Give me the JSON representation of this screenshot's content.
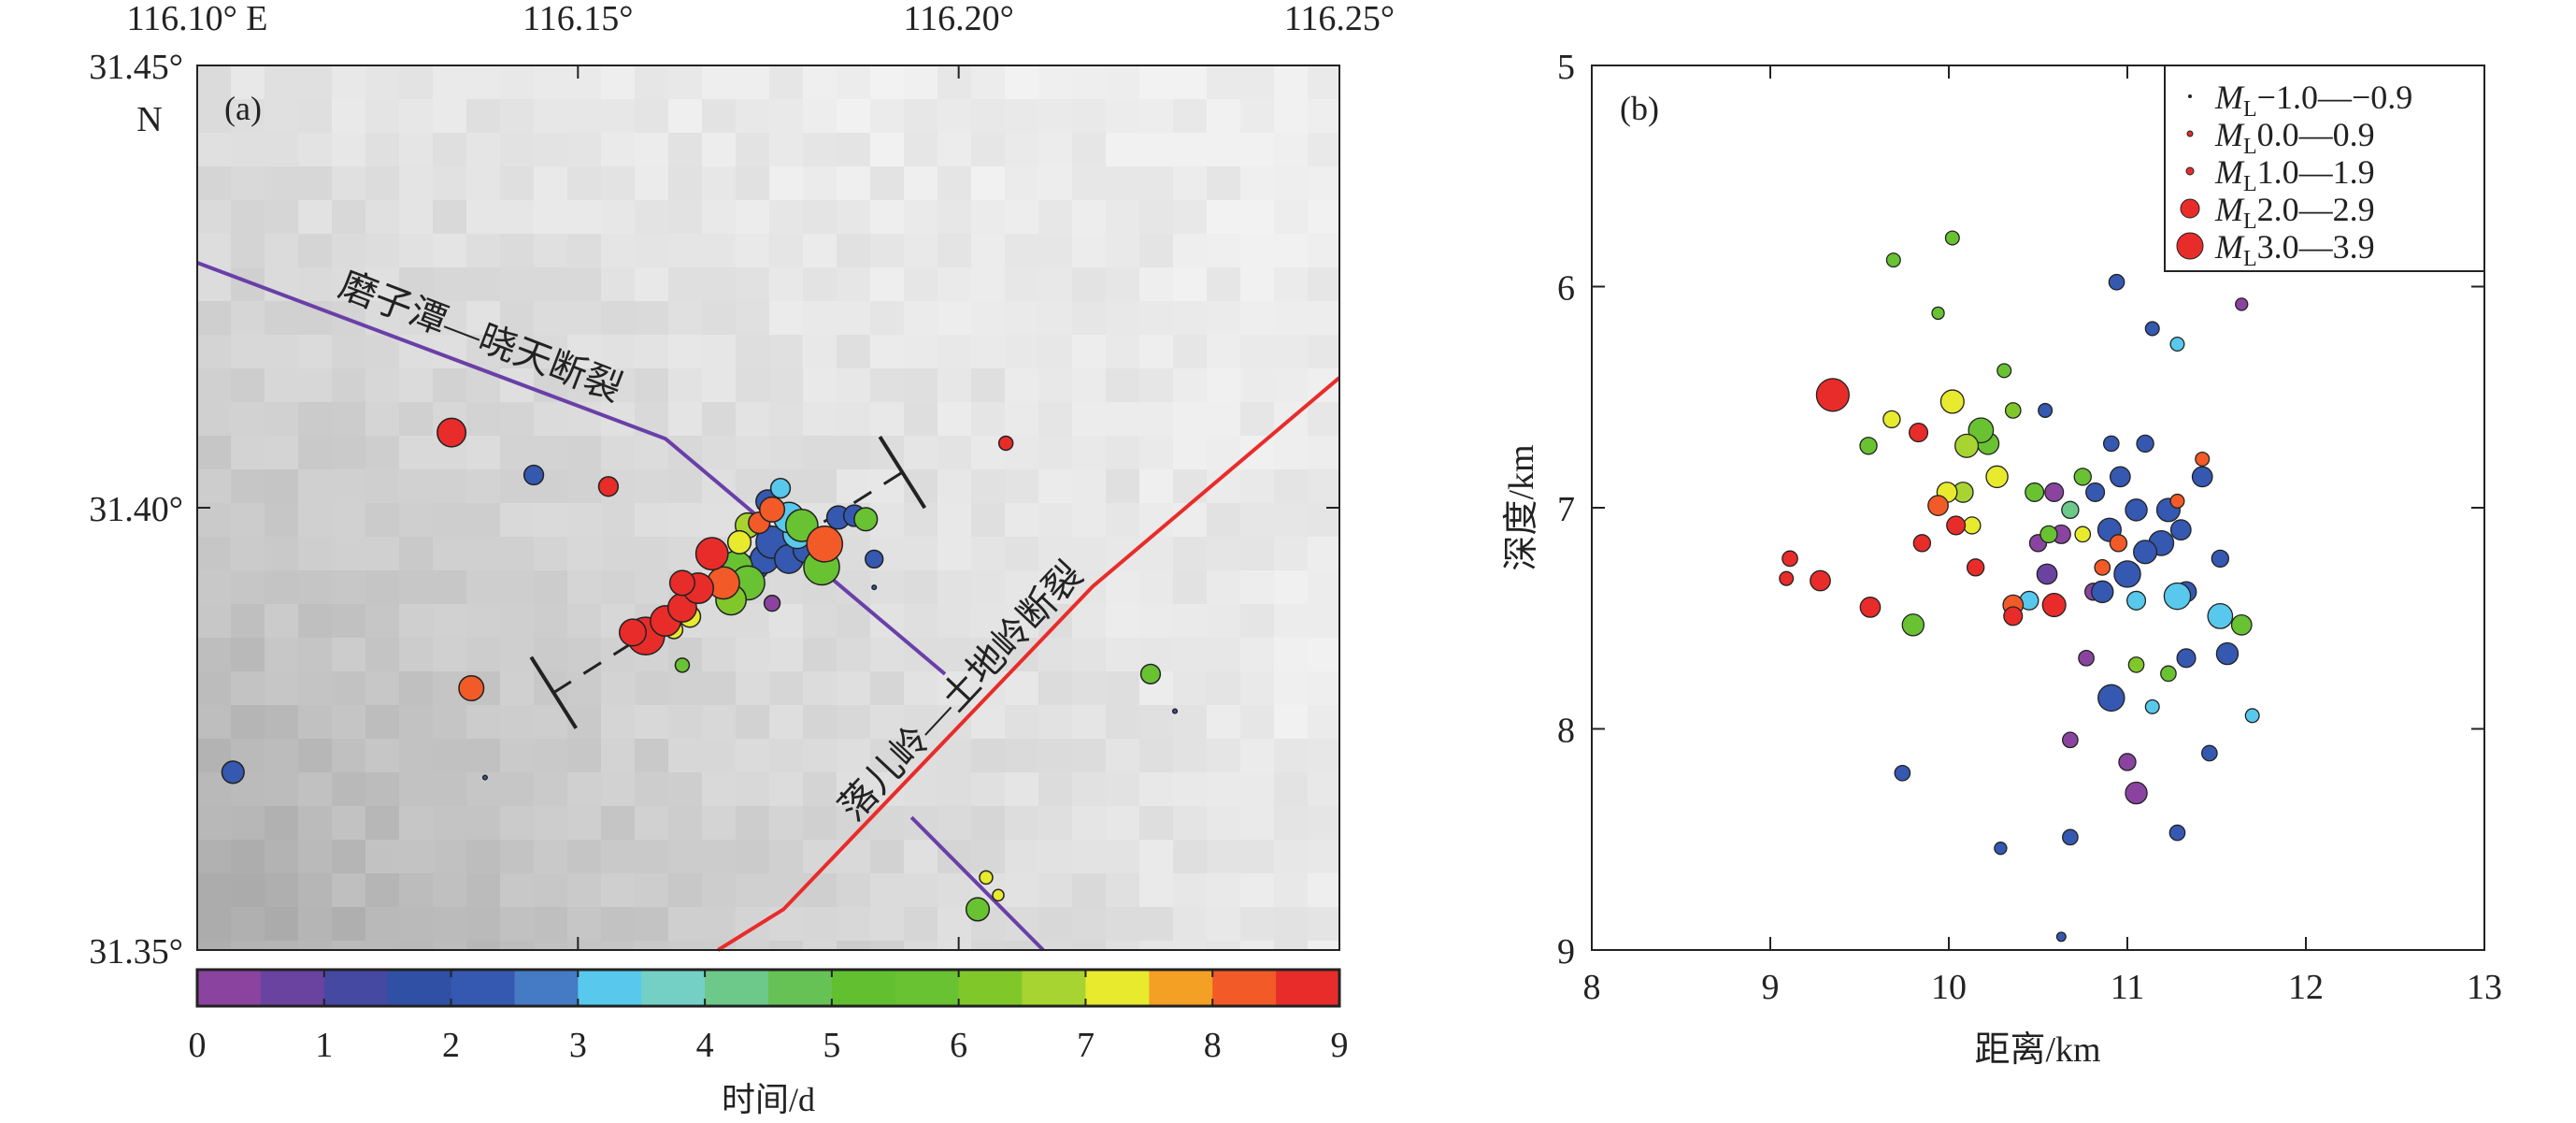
{
  "colors": [
    "#8a44a0",
    "#6a42a0",
    "#4549a2",
    "#2f50a4",
    "#3558b0",
    "#457ac4",
    "#58c8ec",
    "#74d0c4",
    "#6cc98a",
    "#66c254",
    "#62c030",
    "#68c232",
    "#80c82a",
    "#a8d432",
    "#e8ea2e",
    "#f4a024",
    "#f25a28",
    "#e82c2a"
  ],
  "chart_data": [
    {
      "type": "scatter",
      "panel_label": "(a)",
      "x_ticks": [
        "116.10° E",
        "116.15°",
        "116.20°",
        "116.25°"
      ],
      "x_tick_values": [
        116.1,
        116.15,
        116.2,
        116.25
      ],
      "y_ticks": [
        "31.45°",
        "31.40°",
        "31.35°"
      ],
      "y_tick_values": [
        31.45,
        31.4,
        31.35
      ],
      "y_unit_label": "N",
      "xlim": [
        116.1,
        116.25
      ],
      "ylim": [
        31.35,
        31.45
      ],
      "fields": [
        "lon",
        "lat",
        "time_d",
        "magnitude_ML"
      ],
      "events": [
        [
          116.1334,
          31.4085,
          8.8,
          2.2
        ],
        [
          116.1442,
          31.4037,
          2.2,
          1.2
        ],
        [
          116.154,
          31.4024,
          8.8,
          1.2
        ],
        [
          116.2062,
          31.4073,
          8.8,
          0.6
        ],
        [
          116.136,
          31.3796,
          8.2,
          1.8
        ],
        [
          116.1047,
          31.3701,
          2.2,
          1.5
        ],
        [
          116.1378,
          31.3695,
          2.0,
          -1.0
        ],
        [
          116.2252,
          31.3812,
          5.5,
          1.2
        ],
        [
          116.2284,
          31.377,
          2.0,
          -0.5
        ],
        [
          116.2025,
          31.3546,
          5.5,
          1.6
        ],
        [
          116.2036,
          31.3582,
          7.3,
          0.5
        ],
        [
          116.2052,
          31.3562,
          7.3,
          0.3
        ],
        [
          116.1755,
          31.3892,
          0.3,
          0.8
        ],
        [
          116.1637,
          31.3822,
          5.5,
          0.6
        ],
        [
          116.1889,
          31.391,
          2.0,
          -0.8
        ],
        [
          116.1589,
          31.3855,
          8.8,
          3.2
        ],
        [
          116.1572,
          31.3859,
          8.8,
          2.0
        ],
        [
          116.1615,
          31.3872,
          8.8,
          2.4
        ],
        [
          116.1637,
          31.3887,
          8.8,
          2.2
        ],
        [
          116.1658,
          31.3909,
          8.8,
          2.4
        ],
        [
          116.1637,
          31.3915,
          8.8,
          1.8
        ],
        [
          116.1676,
          31.3948,
          8.8,
          2.6
        ],
        [
          116.1691,
          31.3915,
          8.2,
          2.6
        ],
        [
          116.1626,
          31.3862,
          7.3,
          1.0
        ],
        [
          116.1647,
          31.3877,
          7.3,
          1.4
        ],
        [
          116.1701,
          31.3896,
          6.2,
          2.4
        ],
        [
          116.1734,
          31.3933,
          2.2,
          1.8
        ],
        [
          116.1708,
          31.3933,
          5.5,
          2.6
        ],
        [
          116.1712,
          31.3961,
          7.3,
          1.6
        ],
        [
          116.1723,
          31.3915,
          5.5,
          2.8
        ],
        [
          116.1745,
          31.3942,
          2.2,
          2.2
        ],
        [
          116.1723,
          31.398,
          6.8,
          1.8
        ],
        [
          116.1738,
          31.3983,
          8.2,
          1.4
        ],
        [
          116.1755,
          31.3961,
          2.2,
          2.6
        ],
        [
          116.1755,
          31.3998,
          8.2,
          1.8
        ],
        [
          116.1749,
          31.4007,
          2.2,
          1.6
        ],
        [
          116.1766,
          31.4022,
          3.3,
          1.2
        ],
        [
          116.1777,
          31.3942,
          2.2,
          2.2
        ],
        [
          116.1788,
          31.397,
          3.3,
          2.2
        ],
        [
          116.1777,
          31.3989,
          3.3,
          2.4
        ],
        [
          116.1799,
          31.3952,
          2.2,
          1.8
        ],
        [
          116.1794,
          31.398,
          5.5,
          2.6
        ],
        [
          116.182,
          31.3933,
          5.5,
          3.0
        ],
        [
          116.1824,
          31.3959,
          8.2,
          3.0
        ],
        [
          116.1842,
          31.3989,
          2.2,
          1.6
        ],
        [
          116.1863,
          31.3991,
          2.2,
          1.4
        ],
        [
          116.1878,
          31.3987,
          5.5,
          1.6
        ],
        [
          116.1889,
          31.3942,
          2.2,
          1.0
        ]
      ],
      "faults": [
        {
          "name": "磨子潭—晓天断裂",
          "color": "#6a3fa8",
          "path": [
            [
              116.1,
              31.4277
            ],
            [
              116.1615,
              31.4078
            ],
            [
              116.1982,
              31.3812
            ]
          ]
        },
        {
          "name": "",
          "color": "#6a3fa8",
          "path": [
            [
              116.1938,
              31.365
            ],
            [
              116.2111,
              31.35
            ]
          ]
        },
        {
          "name": "落儿岭—土地岭断裂",
          "color": "#e82c2a",
          "path": [
            [
              116.1684,
              31.35
            ],
            [
              116.177,
              31.3546
            ],
            [
              116.2176,
              31.3911
            ],
            [
              116.25,
              31.4147
            ]
          ]
        }
      ],
      "profile_line": [
        [
          116.1468,
          31.3791
        ],
        [
          116.1926,
          31.404
        ]
      ],
      "colorbar": {
        "ticks": [
          "0",
          "1",
          "2",
          "3",
          "4",
          "5",
          "6",
          "7",
          "8",
          "9"
        ],
        "label": "时间/d",
        "range": [
          0,
          9
        ]
      }
    },
    {
      "type": "scatter",
      "panel_label": "(b)",
      "xlabel": "距离/km",
      "ylabel": "深度/km",
      "xlim": [
        8,
        13
      ],
      "ylim": [
        5,
        9
      ],
      "y_inverted": true,
      "x_ticks": [
        "8",
        "9",
        "10",
        "11",
        "12",
        "13"
      ],
      "y_ticks": [
        "5",
        "6",
        "7",
        "8",
        "9"
      ],
      "legend": {
        "position": "top-right",
        "entries": [
          {
            "prefix": "M",
            "sub": "L",
            "range": "−1.0—−0.9",
            "magnitude": -1.0
          },
          {
            "prefix": "M",
            "sub": "L",
            "range": "0.0—0.9",
            "magnitude": 0.5
          },
          {
            "prefix": "M",
            "sub": "L",
            "range": "1.0—1.9",
            "magnitude": 1.0
          },
          {
            "prefix": "M",
            "sub": "L",
            "range": "2.0—2.9",
            "magnitude": 2.5
          },
          {
            "prefix": "M",
            "sub": "L",
            "range": "3.0—3.9",
            "magnitude": 3.5
          }
        ]
      },
      "fields": [
        "distance_km",
        "depth_km",
        "time_d",
        "magnitude_ML"
      ],
      "events": [
        [
          9.35,
          6.49,
          8.8,
          3.2
        ],
        [
          9.11,
          7.23,
          8.8,
          1.0
        ],
        [
          9.28,
          7.33,
          8.8,
          1.6
        ],
        [
          9.09,
          7.32,
          8.8,
          0.8
        ],
        [
          9.56,
          7.45,
          8.8,
          1.6
        ],
        [
          9.85,
          7.16,
          8.8,
          1.2
        ],
        [
          10.04,
          7.08,
          8.8,
          1.4
        ],
        [
          9.83,
          6.66,
          8.8,
          1.4
        ],
        [
          10.15,
          7.27,
          8.8,
          1.2
        ],
        [
          10.59,
          7.44,
          8.8,
          2.0
        ],
        [
          10.36,
          7.49,
          8.8,
          1.4
        ],
        [
          9.94,
          6.99,
          8.2,
          1.6
        ],
        [
          10.36,
          7.44,
          8.2,
          1.6
        ],
        [
          10.86,
          7.27,
          8.2,
          1.0
        ],
        [
          10.95,
          7.16,
          8.2,
          1.2
        ],
        [
          11.28,
          6.97,
          8.2,
          0.8
        ],
        [
          11.42,
          6.78,
          8.2,
          0.8
        ],
        [
          10.02,
          6.52,
          7.3,
          2.0
        ],
        [
          9.99,
          6.93,
          7.3,
          1.6
        ],
        [
          10.13,
          7.08,
          7.3,
          1.2
        ],
        [
          10.27,
          6.86,
          7.3,
          1.8
        ],
        [
          9.68,
          6.6,
          7.3,
          1.2
        ],
        [
          10.75,
          7.12,
          7.3,
          1.0
        ],
        [
          9.8,
          7.53,
          5.5,
          1.8
        ],
        [
          9.55,
          6.72,
          5.5,
          1.2
        ],
        [
          10.22,
          6.71,
          5.5,
          1.8
        ],
        [
          9.94,
          6.12,
          5.5,
          0.6
        ],
        [
          9.69,
          5.88,
          5.5,
          0.8
        ],
        [
          10.31,
          6.38,
          5.5,
          0.8
        ],
        [
          10.56,
          7.12,
          5.5,
          1.2
        ],
        [
          10.75,
          6.86,
          5.5,
          1.2
        ],
        [
          11.64,
          7.53,
          5.5,
          1.6
        ],
        [
          11.23,
          7.75,
          5.5,
          1.0
        ],
        [
          10.48,
          6.93,
          5.5,
          1.4
        ],
        [
          10.08,
          6.93,
          6.8,
          1.6
        ],
        [
          10.02,
          5.78,
          5.5,
          0.8
        ],
        [
          10.36,
          6.56,
          6.2,
          1.0
        ],
        [
          11.05,
          7.71,
          6.2,
          1.0
        ],
        [
          10.68,
          7.01,
          4.0,
          1.2
        ],
        [
          10.1,
          6.72,
          6.8,
          2.0
        ],
        [
          10.18,
          6.65,
          5.5,
          2.2
        ],
        [
          11.52,
          7.49,
          3.3,
          2.2
        ],
        [
          11.7,
          7.94,
          3.3,
          0.8
        ],
        [
          11.28,
          6.26,
          3.3,
          0.8
        ],
        [
          11.05,
          7.42,
          3.3,
          1.4
        ],
        [
          11.28,
          7.4,
          3.3,
          2.4
        ],
        [
          10.45,
          7.42,
          3.3,
          1.4
        ],
        [
          11.14,
          7.9,
          3.3,
          0.8
        ],
        [
          10.91,
          7.86,
          2.2,
          2.4
        ],
        [
          11.05,
          7.01,
          2.2,
          1.8
        ],
        [
          11.23,
          7.01,
          2.2,
          2.0
        ],
        [
          10.96,
          6.86,
          2.2,
          1.6
        ],
        [
          11.42,
          6.86,
          2.2,
          1.6
        ],
        [
          11.52,
          7.23,
          2.2,
          1.2
        ],
        [
          11.33,
          7.38,
          2.2,
          1.6
        ],
        [
          11.19,
          7.16,
          2.2,
          2.2
        ],
        [
          10.82,
          6.93,
          2.2,
          1.4
        ],
        [
          11.1,
          6.71,
          2.2,
          1.2
        ],
        [
          10.86,
          7.38,
          2.2,
          1.8
        ],
        [
          11.56,
          7.66,
          2.2,
          1.8
        ],
        [
          11.0,
          7.3,
          2.2,
          2.4
        ],
        [
          11.1,
          7.2,
          2.2,
          2.0
        ],
        [
          10.9,
          7.1,
          2.2,
          2.0
        ],
        [
          11.3,
          7.1,
          2.2,
          1.6
        ],
        [
          11.46,
          8.11,
          2.2,
          1.0
        ],
        [
          9.74,
          8.2,
          2.2,
          1.0
        ],
        [
          10.29,
          8.54,
          2.2,
          0.6
        ],
        [
          11.28,
          8.47,
          2.2,
          1.0
        ],
        [
          10.68,
          8.49,
          2.2,
          1.0
        ],
        [
          10.63,
          8.94,
          2.2,
          0.2
        ],
        [
          10.94,
          5.98,
          2.2,
          1.0
        ],
        [
          11.14,
          6.19,
          2.2,
          0.8
        ],
        [
          10.91,
          6.71,
          2.2,
          1.0
        ],
        [
          10.54,
          6.56,
          2.2,
          0.8
        ],
        [
          11.33,
          7.68,
          2.2,
          1.4
        ],
        [
          11.05,
          8.29,
          0.3,
          1.8
        ],
        [
          11.0,
          8.15,
          0.3,
          1.2
        ],
        [
          10.59,
          6.93,
          0.3,
          1.4
        ],
        [
          10.5,
          7.16,
          0.3,
          1.2
        ],
        [
          10.77,
          7.68,
          0.3,
          1.0
        ],
        [
          10.68,
          8.05,
          0.3,
          1.0
        ],
        [
          11.64,
          6.08,
          0.3,
          0.6
        ],
        [
          10.63,
          7.12,
          0.3,
          1.4
        ],
        [
          10.81,
          7.38,
          0.3,
          1.2
        ],
        [
          10.55,
          7.3,
          0.6,
          1.6
        ]
      ]
    }
  ]
}
